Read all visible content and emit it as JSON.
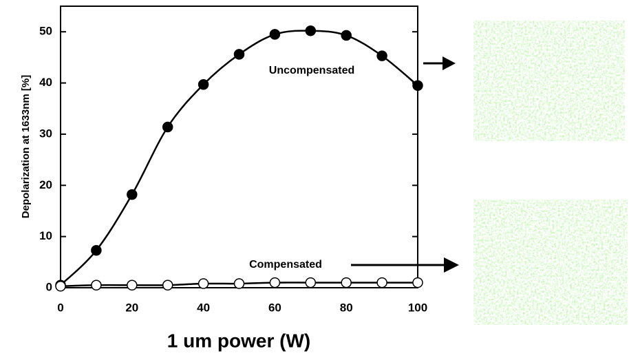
{
  "chart_data": {
    "type": "line",
    "x_label": "1 um power (W)",
    "y_label": "Depolarization at 1633nm [%]",
    "x": [
      0,
      10,
      20,
      30,
      40,
      50,
      60,
      70,
      80,
      90,
      100
    ],
    "series": [
      {
        "name": "Uncompensated",
        "color": "#000000",
        "marker": "filled",
        "values": [
          0.5,
          7.3,
          18.2,
          31.4,
          39.7,
          45.6,
          49.5,
          50.2,
          49.3,
          45.3,
          39.5
        ]
      },
      {
        "name": "Compensated",
        "color": "#000000",
        "marker": "open",
        "values": [
          0.3,
          0.5,
          0.5,
          0.5,
          0.8,
          0.8,
          1.0,
          1.0,
          1.0,
          1.0,
          1.0
        ]
      }
    ],
    "xlim": [
      0,
      100
    ],
    "ylim": [
      0,
      55
    ],
    "xticks": [
      0,
      20,
      40,
      60,
      80,
      100
    ],
    "yticks": [
      0,
      10,
      20,
      30,
      40,
      50
    ]
  }
}
